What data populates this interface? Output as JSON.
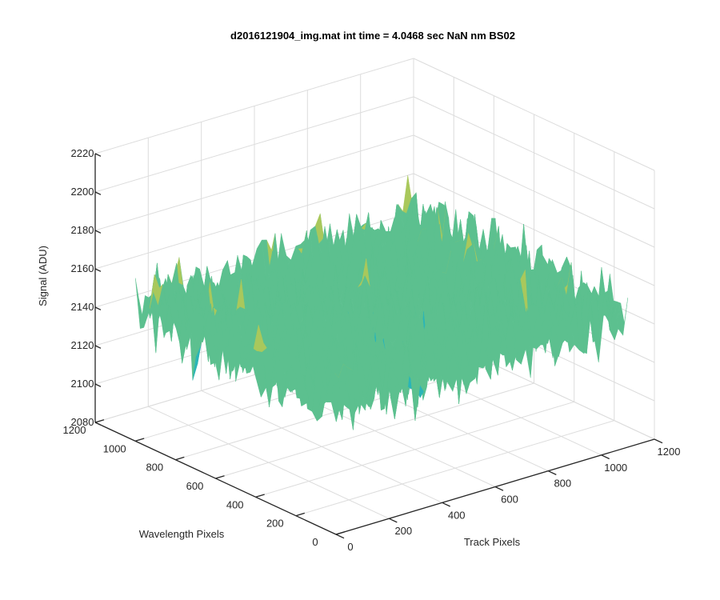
{
  "chart_data": {
    "type": "surface",
    "title": "d2016121904_img.mat int time = 4.0468 sec  NaN nm BS02",
    "xlabel": "Track Pixels",
    "ylabel": "Wavelength Pixels",
    "zlabel": "Signal (ADU)",
    "xlim": [
      0,
      1200
    ],
    "ylim": [
      0,
      1200
    ],
    "zlim": [
      2080,
      2220
    ],
    "x_ticks": [
      "0",
      "200",
      "400",
      "600",
      "800",
      "1000",
      "1200"
    ],
    "y_ticks": [
      "0",
      "200",
      "400",
      "600",
      "800",
      "1000",
      "1200"
    ],
    "z_ticks": [
      "2080",
      "2100",
      "2120",
      "2140",
      "2160",
      "2180",
      "2200",
      "2220"
    ],
    "data_extent": {
      "x": [
        0,
        1100
      ],
      "y": [
        0,
        1000
      ]
    },
    "signal_mean": 2150,
    "signal_range": [
      2090,
      2205
    ],
    "colormap": [
      "#1f9fd0",
      "#2ab5b8",
      "#5cc08f",
      "#a9c85c",
      "#e8c640"
    ],
    "grid": true
  }
}
